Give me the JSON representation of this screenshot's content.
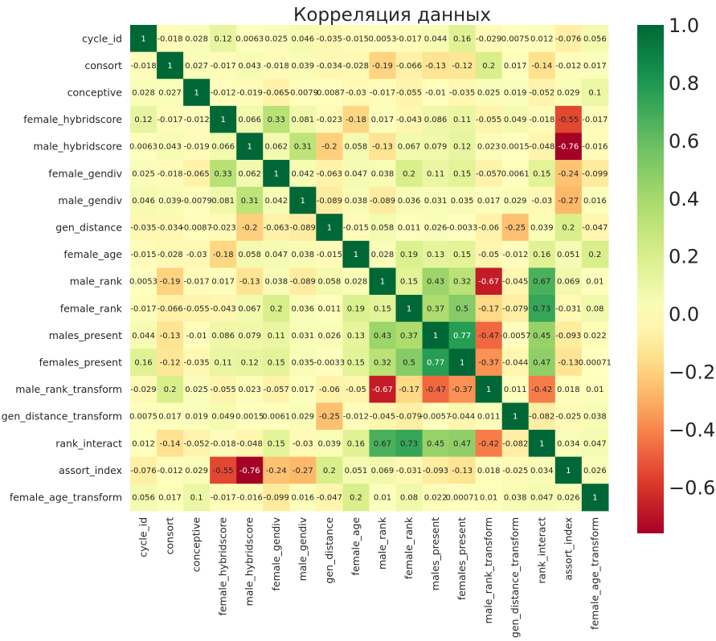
{
  "chart_data": {
    "type": "heatmap",
    "title": "Корреляция данных",
    "labels": [
      "cycle_id",
      "consort",
      "conceptive",
      "female_hybridscore",
      "male_hybridscore",
      "female_gendiv",
      "male_gendiv",
      "gen_distance",
      "female_age",
      "male_rank",
      "female_rank",
      "males_present",
      "females_present",
      "male_rank_transform",
      "gen_distance_transform",
      "rank_interact",
      "assort_index",
      "female_age_transform"
    ],
    "matrix": [
      [
        1,
        -0.018,
        0.028,
        0.12,
        0.0063,
        0.025,
        0.046,
        -0.035,
        -0.015,
        0.0053,
        -0.017,
        0.044,
        0.16,
        -0.029,
        0.0075,
        0.012,
        -0.076,
        0.056
      ],
      [
        -0.018,
        1,
        0.027,
        -0.017,
        0.043,
        -0.018,
        0.039,
        -0.034,
        -0.028,
        -0.19,
        -0.066,
        -0.13,
        -0.12,
        0.2,
        0.017,
        -0.14,
        -0.012,
        0.017
      ],
      [
        0.028,
        0.027,
        1,
        -0.012,
        -0.019,
        -0.065,
        -0.0079,
        -0.0087,
        -0.03,
        -0.017,
        -0.055,
        -0.01,
        -0.035,
        0.025,
        0.019,
        -0.052,
        0.029,
        0.1
      ],
      [
        0.12,
        -0.017,
        -0.012,
        1,
        0.066,
        0.33,
        0.081,
        -0.023,
        -0.18,
        0.017,
        -0.043,
        0.086,
        0.11,
        -0.055,
        0.049,
        -0.018,
        -0.55,
        -0.017
      ],
      [
        0.0063,
        0.043,
        -0.019,
        0.066,
        1,
        0.062,
        0.31,
        -0.2,
        0.058,
        -0.13,
        0.067,
        0.079,
        0.12,
        0.023,
        0.0015,
        -0.048,
        -0.76,
        -0.016
      ],
      [
        0.025,
        -0.018,
        -0.065,
        0.33,
        0.062,
        1,
        0.042,
        -0.063,
        0.047,
        0.038,
        0.2,
        0.11,
        0.15,
        -0.057,
        0.0061,
        0.15,
        -0.24,
        -0.099
      ],
      [
        0.046,
        0.039,
        -0.0079,
        0.081,
        0.31,
        0.042,
        1,
        -0.089,
        0.038,
        -0.089,
        0.036,
        0.031,
        0.035,
        0.017,
        0.029,
        -0.03,
        -0.27,
        0.016
      ],
      [
        -0.035,
        -0.034,
        -0.0087,
        -0.023,
        -0.2,
        -0.063,
        -0.089,
        1,
        -0.015,
        0.058,
        0.011,
        0.026,
        -0.0033,
        -0.06,
        -0.25,
        0.039,
        0.2,
        -0.047
      ],
      [
        -0.015,
        -0.028,
        -0.03,
        -0.18,
        0.058,
        0.047,
        0.038,
        -0.015,
        1,
        0.028,
        0.19,
        0.13,
        0.15,
        -0.05,
        -0.012,
        0.16,
        0.051,
        0.2
      ],
      [
        0.0053,
        -0.19,
        -0.017,
        0.017,
        -0.13,
        0.038,
        -0.089,
        0.058,
        0.028,
        1,
        0.15,
        0.43,
        0.32,
        -0.67,
        -0.045,
        0.67,
        0.069,
        0.01
      ],
      [
        -0.017,
        -0.066,
        -0.055,
        -0.043,
        0.067,
        0.2,
        0.036,
        0.011,
        0.19,
        0.15,
        1,
        0.37,
        0.5,
        -0.17,
        -0.079,
        0.73,
        -0.031,
        0.08
      ],
      [
        0.044,
        -0.13,
        -0.01,
        0.086,
        0.079,
        0.11,
        0.031,
        0.026,
        0.13,
        0.43,
        0.37,
        1,
        0.77,
        -0.47,
        -0.0057,
        0.45,
        -0.093,
        0.022
      ],
      [
        0.16,
        -0.12,
        -0.035,
        0.11,
        0.12,
        0.15,
        0.035,
        -0.0033,
        0.15,
        0.32,
        0.5,
        0.77,
        1,
        -0.37,
        -0.044,
        0.47,
        -0.13,
        0.00071
      ],
      [
        -0.029,
        0.2,
        0.025,
        -0.055,
        0.023,
        -0.057,
        0.017,
        -0.06,
        -0.05,
        -0.67,
        -0.17,
        -0.47,
        -0.37,
        1,
        0.011,
        -0.42,
        0.018,
        0.01
      ],
      [
        0.0075,
        0.017,
        0.019,
        0.049,
        0.0015,
        0.0061,
        0.029,
        -0.25,
        -0.012,
        -0.045,
        -0.079,
        -0.0057,
        -0.044,
        0.011,
        1,
        -0.082,
        -0.025,
        0.038
      ],
      [
        0.012,
        -0.14,
        -0.052,
        -0.018,
        -0.048,
        0.15,
        -0.03,
        0.039,
        0.16,
        0.67,
        0.73,
        0.45,
        0.47,
        -0.42,
        -0.082,
        1,
        0.034,
        0.047
      ],
      [
        -0.076,
        -0.012,
        0.029,
        -0.55,
        -0.76,
        -0.24,
        -0.27,
        0.2,
        0.051,
        0.069,
        -0.031,
        -0.093,
        -0.13,
        0.018,
        -0.025,
        0.034,
        1,
        0.026
      ],
      [
        0.056,
        0.017,
        0.1,
        -0.017,
        -0.016,
        -0.099,
        0.016,
        -0.047,
        0.2,
        0.01,
        0.08,
        0.022,
        0.00071,
        0.01,
        0.038,
        0.047,
        0.026,
        1
      ]
    ],
    "value_labels": [
      [
        "1",
        "-0.018",
        "0.028",
        "0.12",
        "0.0063",
        "0.025",
        "0.046",
        "-0.035",
        "-0.015",
        "0.0053",
        "-0.017",
        "0.044",
        "0.16",
        "-0.029",
        "0.0075",
        "0.012",
        "-0.076",
        "0.056"
      ],
      [
        "-0.018",
        "1",
        "0.027",
        "-0.017",
        "0.043",
        "-0.018",
        "0.039",
        "-0.034",
        "-0.028",
        "-0.19",
        "-0.066",
        "-0.13",
        "-0.12",
        "0.2",
        "0.017",
        "-0.14",
        "-0.012",
        "0.017"
      ],
      [
        "0.028",
        "0.027",
        "1",
        "-0.012",
        "-0.019",
        "-0.065",
        "-0.0079",
        "-0.0087",
        "-0.03",
        "-0.017",
        "-0.055",
        "-0.01",
        "-0.035",
        "0.025",
        "0.019",
        "-0.052",
        "0.029",
        "0.1"
      ],
      [
        "0.12",
        "-0.017",
        "-0.012",
        "1",
        "0.066",
        "0.33",
        "0.081",
        "-0.023",
        "-0.18",
        "0.017",
        "-0.043",
        "0.086",
        "0.11",
        "-0.055",
        "0.049",
        "-0.018",
        "-0.55",
        "-0.017"
      ],
      [
        "0.0063",
        "0.043",
        "-0.019",
        "0.066",
        "1",
        "0.062",
        "0.31",
        "-0.2",
        "0.058",
        "-0.13",
        "0.067",
        "0.079",
        "0.12",
        "0.023",
        "0.0015",
        "-0.048",
        "-0.76",
        "-0.016"
      ],
      [
        "0.025",
        "-0.018",
        "-0.065",
        "0.33",
        "0.062",
        "1",
        "0.042",
        "-0.063",
        "0.047",
        "0.038",
        "0.2",
        "0.11",
        "0.15",
        "-0.057",
        "0.0061",
        "0.15",
        "-0.24",
        "-0.099"
      ],
      [
        "0.046",
        "0.039",
        "-0.0079",
        "0.081",
        "0.31",
        "0.042",
        "1",
        "-0.089",
        "0.038",
        "-0.089",
        "0.036",
        "0.031",
        "0.035",
        "0.017",
        "0.029",
        "-0.03",
        "-0.27",
        "0.016"
      ],
      [
        "-0.035",
        "-0.034",
        "-0.0087",
        "-0.023",
        "-0.2",
        "-0.063",
        "-0.089",
        "1",
        "-0.015",
        "0.058",
        "0.011",
        "0.026",
        "-0.0033",
        "-0.06",
        "-0.25",
        "0.039",
        "0.2",
        "-0.047"
      ],
      [
        "-0.015",
        "-0.028",
        "-0.03",
        "-0.18",
        "0.058",
        "0.047",
        "0.038",
        "-0.015",
        "1",
        "0.028",
        "0.19",
        "0.13",
        "0.15",
        "-0.05",
        "-0.012",
        "0.16",
        "0.051",
        "0.2"
      ],
      [
        "0.0053",
        "-0.19",
        "-0.017",
        "0.017",
        "-0.13",
        "0.038",
        "-0.089",
        "0.058",
        "0.028",
        "1",
        "0.15",
        "0.43",
        "0.32",
        "-0.67",
        "-0.045",
        "0.67",
        "0.069",
        "0.01"
      ],
      [
        "-0.017",
        "-0.066",
        "-0.055",
        "-0.043",
        "0.067",
        "0.2",
        "0.036",
        "0.011",
        "0.19",
        "0.15",
        "1",
        "0.37",
        "0.5",
        "-0.17",
        "-0.079",
        "0.73",
        "-0.031",
        "0.08"
      ],
      [
        "0.044",
        "-0.13",
        "-0.01",
        "0.086",
        "0.079",
        "0.11",
        "0.031",
        "0.026",
        "0.13",
        "0.43",
        "0.37",
        "1",
        "0.77",
        "-0.47",
        "-0.0057",
        "0.45",
        "-0.093",
        "0.022"
      ],
      [
        "0.16",
        "-0.12",
        "-0.035",
        "0.11",
        "0.12",
        "0.15",
        "0.035",
        "-0.0033",
        "0.15",
        "0.32",
        "0.5",
        "0.77",
        "1",
        "-0.37",
        "-0.044",
        "0.47",
        "-0.13",
        "0.00071"
      ],
      [
        "-0.029",
        "0.2",
        "0.025",
        "-0.055",
        "0.023",
        "-0.057",
        "0.017",
        "-0.06",
        "-0.05",
        "-0.67",
        "-0.17",
        "-0.47",
        "-0.37",
        "1",
        "0.011",
        "-0.42",
        "0.018",
        "0.01"
      ],
      [
        "0.0075",
        "0.017",
        "0.019",
        "0.049",
        "0.0015",
        "0.0061",
        "0.029",
        "-0.25",
        "-0.012",
        "-0.045",
        "-0.079",
        "-0.0057",
        "-0.044",
        "0.011",
        "1",
        "-0.082",
        "-0.025",
        "0.038"
      ],
      [
        "0.012",
        "-0.14",
        "-0.052",
        "-0.018",
        "-0.048",
        "0.15",
        "-0.03",
        "0.039",
        "0.16",
        "0.67",
        "0.73",
        "0.45",
        "0.47",
        "-0.42",
        "-0.082",
        "1",
        "0.034",
        "0.047"
      ],
      [
        "-0.076",
        "-0.012",
        "0.029",
        "-0.55",
        "-0.76",
        "-0.24",
        "-0.27",
        "0.2",
        "0.051",
        "0.069",
        "-0.031",
        "-0.093",
        "-0.13",
        "0.018",
        "-0.025",
        "0.034",
        "1",
        "0.026"
      ],
      [
        "0.056",
        "0.017",
        "0.1",
        "-0.017",
        "-0.016",
        "-0.099",
        "0.016",
        "-0.047",
        "0.2",
        "0.01",
        "0.08",
        "0.022",
        "0.00071",
        "0.01",
        "0.038",
        "0.047",
        "0.026",
        "1"
      ]
    ],
    "colormap": "RdYlGn",
    "vmin": -0.76,
    "vmax": 1.0,
    "colorbar_ticks": [
      1.0,
      0.8,
      0.6,
      0.4,
      0.2,
      0.0,
      -0.2,
      -0.4,
      -0.6
    ],
    "colorbar_tick_labels": [
      "1.0",
      "0.8",
      "0.6",
      "0.4",
      "0.2",
      "0.0",
      "−0.2",
      "−0.4",
      "−0.6"
    ],
    "colorbar_colors": {
      "min": "#e34a33",
      "low": "#fdae61",
      "mid": "#ffffbf",
      "high": "#66bd63",
      "max": "#006837"
    },
    "annotations": true,
    "grid": false,
    "legend": "colorbar-right"
  }
}
